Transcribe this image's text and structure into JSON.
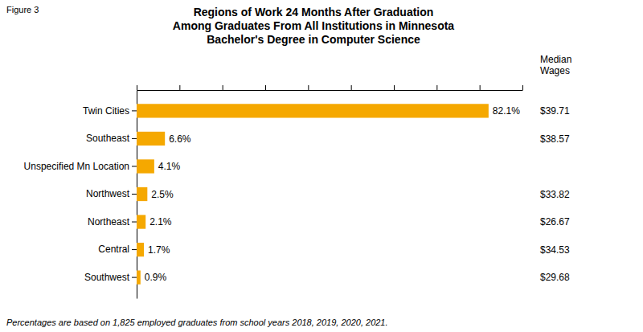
{
  "chart_data": {
    "type": "bar",
    "orientation": "horizontal",
    "title": [
      "Regions of Work 24 Months After Graduation",
      "Among Graduates From All Institutions in Minnesota",
      "Bachelor's Degree in Computer Science"
    ],
    "categories": [
      "Twin Cities",
      "Southeast",
      "Unspecified Mn Location",
      "Northwest",
      "Northeast",
      "Central",
      "Southwest"
    ],
    "values": [
      82.1,
      6.6,
      4.1,
      2.5,
      2.1,
      1.7,
      0.9
    ],
    "value_labels": [
      "82.1%",
      "6.6%",
      "4.1%",
      "2.5%",
      "2.1%",
      "1.7%",
      "0.9%"
    ],
    "data_labels": true,
    "color": "#F5A800",
    "xlim": [
      0,
      90
    ],
    "xticks": [
      0,
      10,
      20,
      30,
      40,
      50,
      60,
      70,
      80,
      90
    ],
    "tick_labels": "y",
    "grid": false,
    "median_wages": {
      "name": "Median\nWages",
      "values": [
        39.71,
        38.57,
        null,
        33.82,
        26.67,
        34.53,
        29.68
      ],
      "value_labels": [
        "$39.71",
        "$38.57",
        null,
        "$33.82",
        "$26.67",
        "$34.53",
        "$29.68"
      ]
    },
    "annotations": [
      "Figure 3",
      "Percentages are based on 1,825 employed graduates from school years 2018, 2019, 2020, 2021."
    ]
  }
}
